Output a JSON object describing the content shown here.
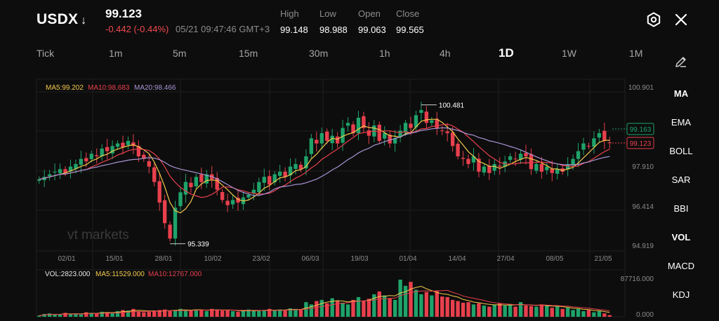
{
  "header": {
    "symbol": "USDX",
    "direction_arrow": "↓",
    "price": "99.123",
    "change": "-0.442 (-0.44%)",
    "timestamp": "05/21 09:47:46 GMT+3",
    "ohlc": [
      {
        "label": "High",
        "value": "99.148"
      },
      {
        "label": "Low",
        "value": "98.988"
      },
      {
        "label": "Open",
        "value": "99.063"
      },
      {
        "label": "Close",
        "value": "99.565"
      }
    ]
  },
  "timeframes": [
    "Tick",
    "1m",
    "5m",
    "15m",
    "30m",
    "1h",
    "4h",
    "1D",
    "1W",
    "1M"
  ],
  "active_timeframe": "1D",
  "indicators": [
    "MA",
    "EMA",
    "BOLL",
    "SAR",
    "BBI",
    "VOL",
    "MACD",
    "KDJ"
  ],
  "active_indicators": [
    "MA",
    "VOL"
  ],
  "watermark": "vt markets",
  "colors": {
    "up": "#1fa36a",
    "down": "#e8404d",
    "ma5": "#f2c94c",
    "ma10": "#e8404d",
    "ma20": "#a894d4",
    "text_muted": "#8c8c8c"
  },
  "chart_data": {
    "type": "candlestick",
    "ma_legend": {
      "ma5": "MA5:99.202",
      "ma10": "MA10:98.683",
      "ma20": "MA20:98.466"
    },
    "y_ticks": [
      "100.901",
      "97.910",
      "96.414",
      "94.919"
    ],
    "ylim": [
      94.919,
      101.6
    ],
    "x_ticks": [
      "02/01",
      "15/01",
      "28/01",
      "10/02",
      "23/02",
      "06/03",
      "19/03",
      "01/04",
      "14/04",
      "27/04",
      "08/05",
      "21/05"
    ],
    "annotations": {
      "high": "100.481",
      "low": "95.339"
    },
    "price_tags": {
      "ma_current": "99.163",
      "last_price": "99.123"
    },
    "closes": [
      97.7,
      97.8,
      97.9,
      98.0,
      98.1,
      97.95,
      98.2,
      98.3,
      98.5,
      98.4,
      98.7,
      98.6,
      98.9,
      98.8,
      99.0,
      99.1,
      98.95,
      99.2,
      99.0,
      98.6,
      98.5,
      98.2,
      97.6,
      96.8,
      96.0,
      95.4,
      96.6,
      97.2,
      97.6,
      97.4,
      97.8,
      97.6,
      97.9,
      97.7,
      97.3,
      96.9,
      96.7,
      96.9,
      96.8,
      97.0,
      97.1,
      97.3,
      97.6,
      97.8,
      97.5,
      97.9,
      98.0,
      97.8,
      98.2,
      98.3,
      98.1,
      98.6,
      99.3,
      99.1,
      99.5,
      99.2,
      99.4,
      99.1,
      99.7,
      99.9,
      99.5,
      100.1,
      99.7,
      99.4,
      99.8,
      99.2,
      99.5,
      99.1,
      99.3,
      99.6,
      99.9,
      99.7,
      100.2,
      100.4,
      99.9,
      100.0,
      99.7,
      99.6,
      99.5,
      99.0,
      98.6,
      98.5,
      98.3,
      98.6,
      98.0,
      98.2,
      97.95,
      98.3,
      98.2,
      98.4,
      98.6,
      98.5,
      98.7,
      98.6,
      98.1,
      98.3,
      98.0,
      98.2,
      97.95,
      98.1,
      98.0,
      98.3,
      98.5,
      98.8,
      99.1,
      99.0,
      99.3,
      99.5,
      99.2,
      99.123
    ],
    "volume": {
      "legend": {
        "vol": "VOL:2823.000",
        "ma5": "MA5:11529.000",
        "ma10": "MA10:12767.000"
      },
      "y_ticks": [
        "87716.000",
        "0.000"
      ],
      "ylim": [
        0,
        87716
      ],
      "values": [
        2,
        5,
        6,
        4,
        5,
        7,
        5,
        6,
        4,
        8,
        7,
        6,
        9,
        8,
        7,
        10,
        12,
        11,
        14,
        10,
        8,
        9,
        11,
        12,
        13,
        10,
        12,
        14,
        12,
        11,
        13,
        12,
        10,
        14,
        13,
        11,
        12,
        10,
        9,
        11,
        13,
        12,
        10,
        11,
        14,
        12,
        13,
        11,
        15,
        14,
        12,
        26,
        22,
        28,
        30,
        24,
        33,
        28,
        25,
        22,
        30,
        35,
        28,
        32,
        40,
        45,
        38,
        33,
        30,
        66,
        55,
        62,
        48,
        40,
        44,
        38,
        46,
        36,
        35,
        30,
        28,
        25,
        26,
        22,
        24,
        20,
        18,
        22,
        24,
        20,
        22,
        18,
        26,
        20,
        19,
        18,
        22,
        20,
        16,
        18,
        14,
        16,
        12,
        14,
        10,
        12,
        8,
        10,
        6,
        3
      ]
    }
  }
}
